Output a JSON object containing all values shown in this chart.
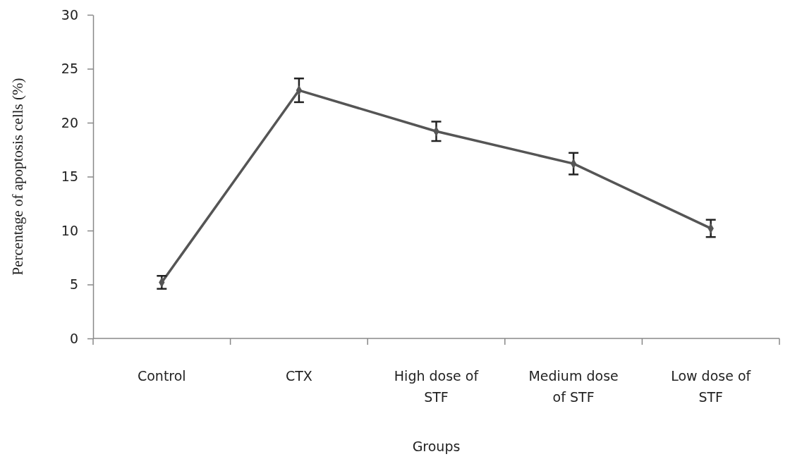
{
  "chart_data": {
    "type": "line",
    "xlabel": "Groups",
    "ylabel": "Percentage of apoptosis cells (%)",
    "categories": [
      "Control",
      "CTX",
      "High dose of STF",
      "Medium dose of STF",
      "Low dose of STF"
    ],
    "series": [
      {
        "color": "#555555",
        "values": [
          5.2,
          23,
          19.2,
          16.2,
          10.2
        ],
        "errors": [
          0.6,
          1.1,
          0.9,
          1.0,
          0.8
        ]
      }
    ],
    "ylim": [
      0,
      30
    ],
    "yticks": [
      0,
      5,
      10,
      15,
      20,
      25,
      30
    ],
    "grid": false,
    "marker": "diamond",
    "line_style": "solid"
  }
}
